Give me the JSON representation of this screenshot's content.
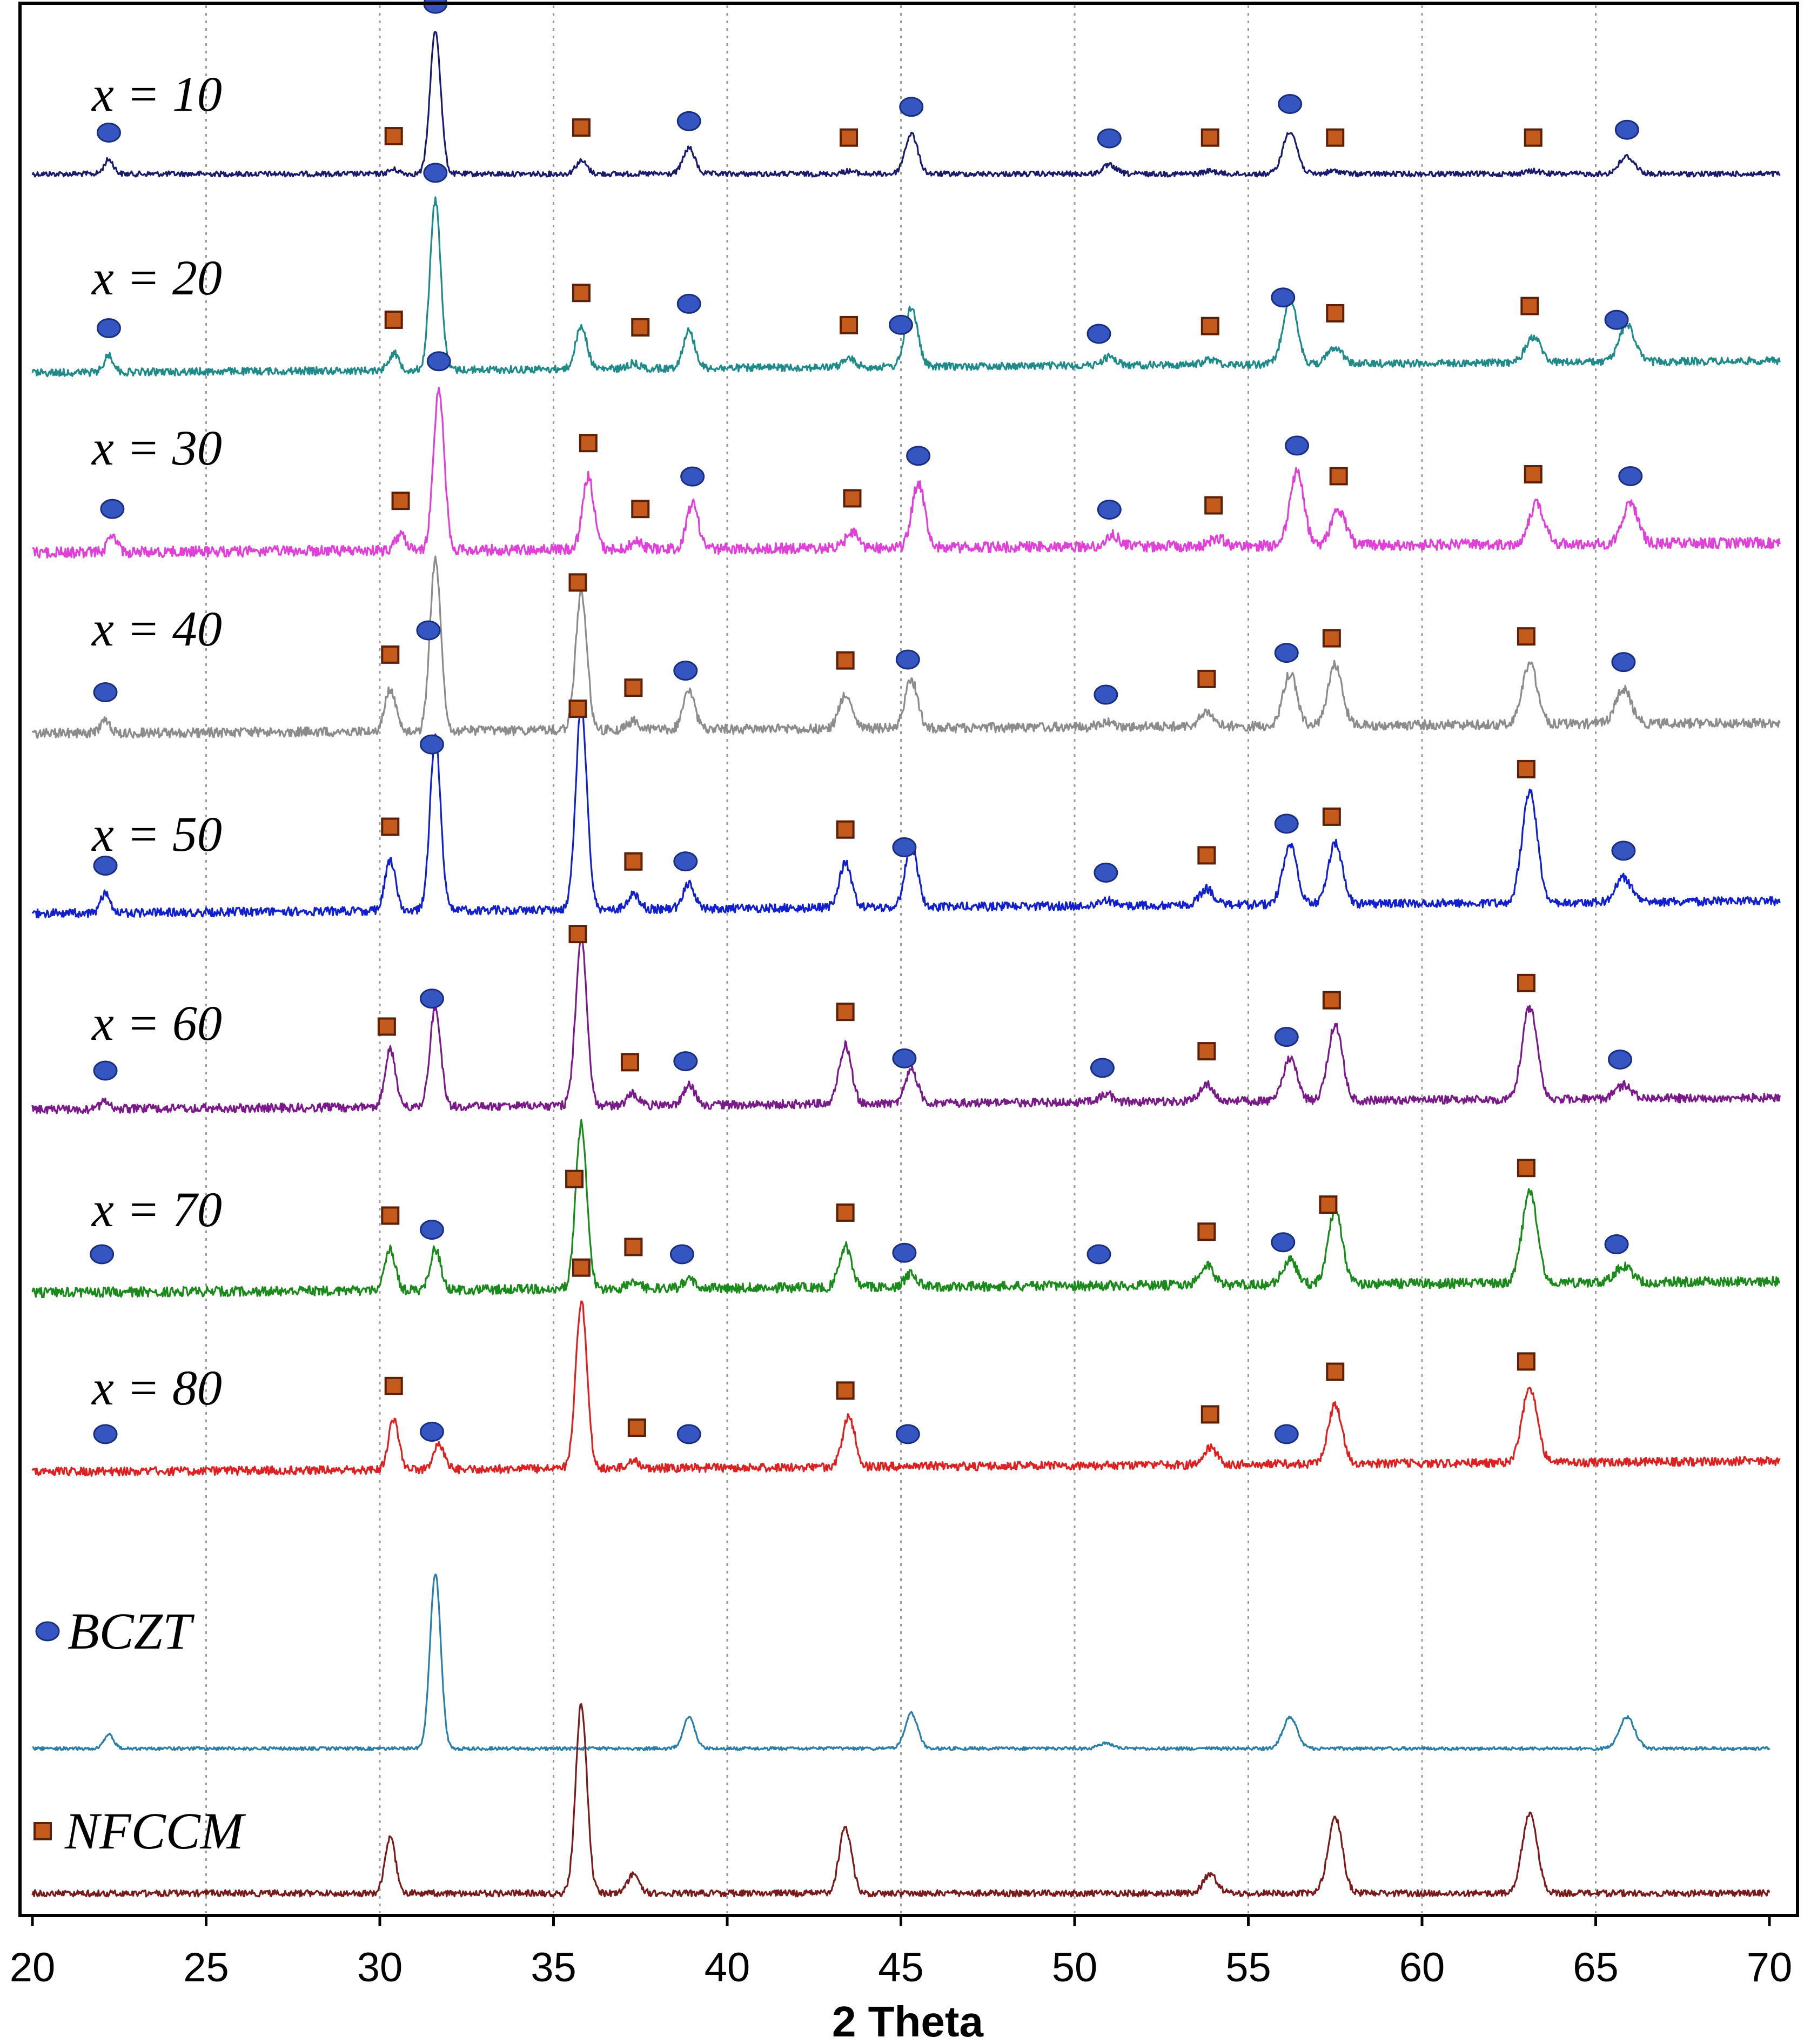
{
  "chart_data": {
    "type": "line",
    "xlabel": "2 Theta",
    "ylabel": "",
    "xlim": [
      20,
      70
    ],
    "xticks": [
      "20",
      "25",
      "30",
      "35",
      "40",
      "45",
      "50",
      "55",
      "60",
      "65",
      "70"
    ],
    "grid": "vertical-dotted",
    "legend": [
      {
        "name": "BCZT",
        "marker": "circle",
        "color": "#3b5fc4"
      },
      {
        "name": "NFCCM",
        "marker": "square",
        "color": "#c8501a"
      }
    ],
    "series": [
      {
        "name": "x = 10",
        "color": "#1a1a6e",
        "peaks": [
          [
            22.2,
            0.1
          ],
          [
            30.4,
            0.03
          ],
          [
            31.6,
            1.0
          ],
          [
            35.8,
            0.09
          ],
          [
            38.9,
            0.18
          ],
          [
            43.5,
            0.02
          ],
          [
            45.3,
            0.28
          ],
          [
            51.0,
            0.06
          ],
          [
            53.9,
            0.02
          ],
          [
            56.2,
            0.3
          ],
          [
            57.5,
            0.02
          ],
          [
            63.2,
            0.02
          ],
          [
            65.9,
            0.12
          ]
        ],
        "bczt_markers": [
          22.2,
          31.6,
          38.9,
          45.3,
          51.0,
          56.2,
          65.9
        ],
        "nfccm_markers": [
          30.4,
          35.8,
          43.5,
          53.9,
          57.5,
          63.2
        ]
      },
      {
        "name": "x = 20",
        "color": "#1f8a8a",
        "peaks": [
          [
            22.2,
            0.1
          ],
          [
            30.4,
            0.1
          ],
          [
            31.6,
            1.0
          ],
          [
            35.8,
            0.25
          ],
          [
            37.3,
            0.03
          ],
          [
            38.9,
            0.22
          ],
          [
            43.5,
            0.05
          ],
          [
            45.3,
            0.35
          ],
          [
            51.0,
            0.05
          ],
          [
            53.9,
            0.03
          ],
          [
            56.2,
            0.38
          ],
          [
            57.5,
            0.1
          ],
          [
            63.2,
            0.15
          ],
          [
            65.9,
            0.22
          ]
        ],
        "bczt_markers": [
          22.2,
          31.6,
          38.9,
          45.0,
          50.7,
          56.0,
          65.6
        ],
        "nfccm_markers": [
          30.4,
          35.8,
          37.5,
          43.5,
          53.9,
          57.5,
          63.1
        ]
      },
      {
        "name": "x = 30",
        "color": "#e040d8",
        "peaks": [
          [
            22.3,
            0.1
          ],
          [
            30.6,
            0.1
          ],
          [
            31.7,
            1.0
          ],
          [
            36.0,
            0.45
          ],
          [
            37.4,
            0.05
          ],
          [
            39.0,
            0.28
          ],
          [
            43.6,
            0.1
          ],
          [
            45.5,
            0.4
          ],
          [
            51.1,
            0.07
          ],
          [
            54.1,
            0.05
          ],
          [
            56.4,
            0.45
          ],
          [
            57.6,
            0.22
          ],
          [
            63.3,
            0.25
          ],
          [
            66.0,
            0.25
          ]
        ],
        "bczt_markers": [
          22.3,
          31.7,
          39.0,
          45.5,
          51.0,
          56.4,
          66.0
        ],
        "nfccm_markers": [
          30.6,
          36.0,
          37.5,
          43.6,
          54.0,
          57.6,
          63.2
        ]
      },
      {
        "name": "x = 40",
        "color": "#8c8c8c",
        "peaks": [
          [
            22.1,
            0.08
          ],
          [
            30.3,
            0.25
          ],
          [
            31.6,
            1.0
          ],
          [
            35.8,
            0.8
          ],
          [
            37.3,
            0.05
          ],
          [
            38.9,
            0.22
          ],
          [
            43.4,
            0.2
          ],
          [
            45.3,
            0.28
          ],
          [
            50.9,
            0.03
          ],
          [
            53.8,
            0.08
          ],
          [
            56.2,
            0.3
          ],
          [
            57.5,
            0.35
          ],
          [
            63.1,
            0.35
          ],
          [
            65.8,
            0.2
          ]
        ],
        "bczt_markers": [
          22.1,
          31.4,
          38.8,
          45.2,
          50.9,
          56.1,
          65.8
        ],
        "nfccm_markers": [
          30.3,
          35.7,
          37.3,
          43.4,
          53.8,
          57.4,
          63.0
        ]
      },
      {
        "name": "x = 50",
        "color": "#1020d0",
        "peaks": [
          [
            22.1,
            0.1
          ],
          [
            30.3,
            0.25
          ],
          [
            31.6,
            0.85
          ],
          [
            35.8,
            1.0
          ],
          [
            37.3,
            0.07
          ],
          [
            38.9,
            0.12
          ],
          [
            43.4,
            0.22
          ],
          [
            45.3,
            0.3
          ],
          [
            50.9,
            0.03
          ],
          [
            53.8,
            0.08
          ],
          [
            56.2,
            0.3
          ],
          [
            57.5,
            0.3
          ],
          [
            63.1,
            0.55
          ],
          [
            65.8,
            0.12
          ]
        ],
        "bczt_markers": [
          22.1,
          31.5,
          38.8,
          45.1,
          50.9,
          56.1,
          65.8
        ],
        "nfccm_markers": [
          30.3,
          35.7,
          37.3,
          43.4,
          53.8,
          57.4,
          63.0
        ]
      },
      {
        "name": "x = 60",
        "color": "#7a1a8a",
        "peaks": [
          [
            22.1,
            0.05
          ],
          [
            30.3,
            0.35
          ],
          [
            31.6,
            0.6
          ],
          [
            35.8,
            1.0
          ],
          [
            37.3,
            0.07
          ],
          [
            38.9,
            0.12
          ],
          [
            43.4,
            0.35
          ],
          [
            45.3,
            0.2
          ],
          [
            50.9,
            0.05
          ],
          [
            53.8,
            0.1
          ],
          [
            56.2,
            0.25
          ],
          [
            57.5,
            0.45
          ],
          [
            63.1,
            0.55
          ],
          [
            65.8,
            0.08
          ]
        ],
        "bczt_markers": [
          22.1,
          31.5,
          38.8,
          45.1,
          50.8,
          56.1,
          65.7
        ],
        "nfccm_markers": [
          30.2,
          35.7,
          37.2,
          43.4,
          53.8,
          57.4,
          63.0
        ]
      },
      {
        "name": "x = 70",
        "color": "#1a8a1a",
        "peaks": [
          [
            30.3,
            0.25
          ],
          [
            31.6,
            0.25
          ],
          [
            35.8,
            1.0
          ],
          [
            37.3,
            0.05
          ],
          [
            38.9,
            0.05
          ],
          [
            43.4,
            0.25
          ],
          [
            45.3,
            0.08
          ],
          [
            53.8,
            0.12
          ],
          [
            56.2,
            0.15
          ],
          [
            57.5,
            0.45
          ],
          [
            63.1,
            0.55
          ],
          [
            65.8,
            0.1
          ]
        ],
        "bczt_markers": [
          22.0,
          31.5,
          38.7,
          45.1,
          50.7,
          56.0,
          65.6
        ],
        "nfccm_markers": [
          30.3,
          35.6,
          37.3,
          43.4,
          53.8,
          57.3,
          63.0
        ]
      },
      {
        "name": "x = 80",
        "color": "#e02020",
        "peaks": [
          [
            30.4,
            0.3
          ],
          [
            31.7,
            0.15
          ],
          [
            35.8,
            1.0
          ],
          [
            37.3,
            0.05
          ],
          [
            43.5,
            0.3
          ],
          [
            53.9,
            0.1
          ],
          [
            57.5,
            0.35
          ],
          [
            63.1,
            0.45
          ]
        ],
        "bczt_markers": [
          22.1,
          31.5,
          38.9,
          45.2,
          56.1
        ],
        "nfccm_markers": [
          30.4,
          35.8,
          37.4,
          43.4,
          53.9,
          57.5,
          63.0
        ]
      },
      {
        "name": "BCZT",
        "color": "#2a7faa",
        "peaks": [
          [
            22.2,
            0.08
          ],
          [
            31.6,
            1.0
          ],
          [
            38.9,
            0.18
          ],
          [
            45.3,
            0.2
          ],
          [
            50.9,
            0.03
          ],
          [
            56.2,
            0.18
          ],
          [
            65.9,
            0.18
          ]
        ],
        "bczt_markers": [],
        "nfccm_markers": []
      },
      {
        "name": "NFCCM",
        "color": "#7a1a1a",
        "peaks": [
          [
            30.3,
            0.3
          ],
          [
            35.8,
            1.0
          ],
          [
            37.3,
            0.1
          ],
          [
            43.4,
            0.35
          ],
          [
            53.9,
            0.1
          ],
          [
            57.5,
            0.4
          ],
          [
            63.1,
            0.42
          ]
        ],
        "bczt_markers": [],
        "nfccm_markers": []
      }
    ]
  }
}
